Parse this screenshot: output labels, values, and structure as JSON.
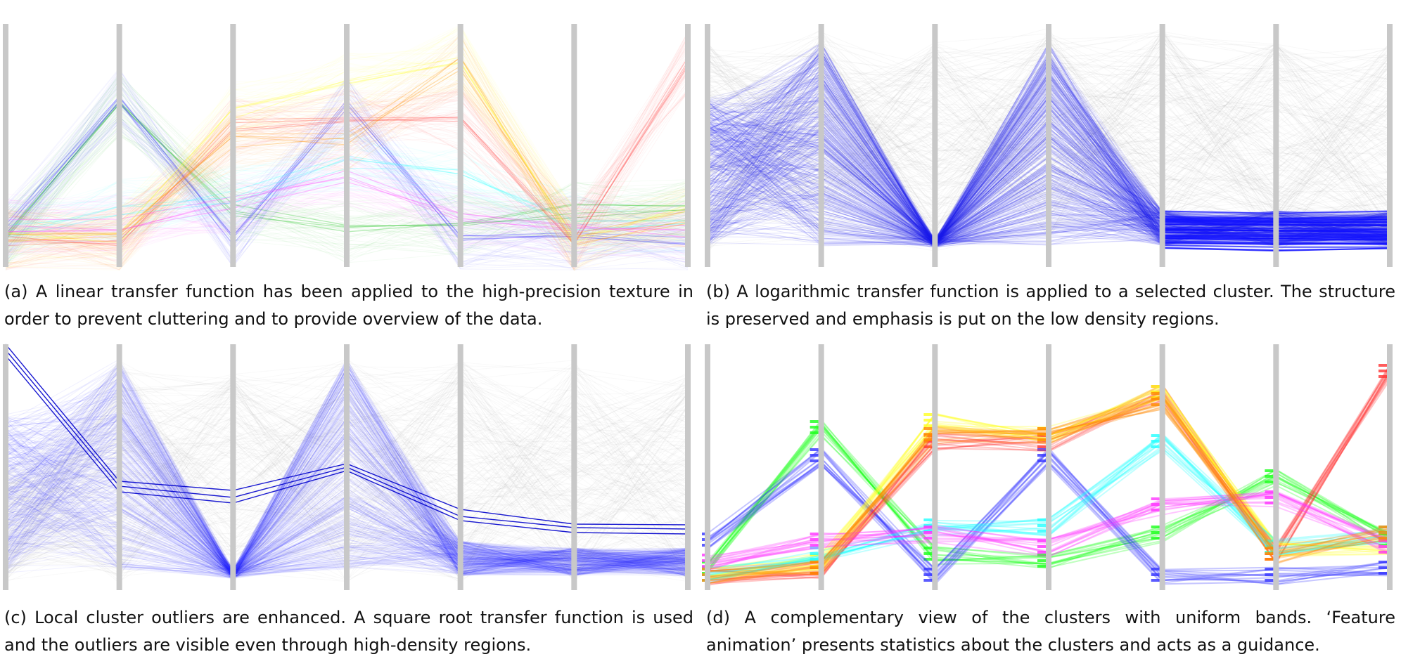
{
  "figure": {
    "panels": [
      {
        "id": "a",
        "caption": "(a) A linear transfer function has been applied to the high-precision texture in order to prevent cluttering and to provide overview of the data.",
        "colors": [
          "#32c832",
          "#3c3cff",
          "#ff5050",
          "#ffff4a",
          "#50ffff",
          "#ff50ff",
          "#ffa020"
        ],
        "style": "faint"
      },
      {
        "id": "b",
        "caption": "(b) A logarithmic transfer function is applied to a selected cluster.  The structure is preserved and emphasis is put on the low density regions.",
        "colors": [
          "#2222ee",
          "#9a9a9a"
        ],
        "style": "selected-log"
      },
      {
        "id": "c",
        "caption": "(c) Local cluster outliers are enhanced.  A square root transfer function is used and the outliers are visible even through high-density regions.",
        "colors": [
          "#2a2aff",
          "#aaaaaa",
          "#0000cc"
        ],
        "style": "outliers"
      },
      {
        "id": "d",
        "caption": "(d) A complementary view of the clusters with uniform bands.  ‘Feature animation’ presents statistics about the clusters and acts as a guidance.",
        "colors": [
          "#1aff1a",
          "#3333ff",
          "#ff3333",
          "#ffff22",
          "#22ffff",
          "#ff33ff",
          "#ff8800"
        ],
        "style": "bands"
      }
    ],
    "axis_count": 7,
    "axis_color": "#c8c8c8"
  }
}
